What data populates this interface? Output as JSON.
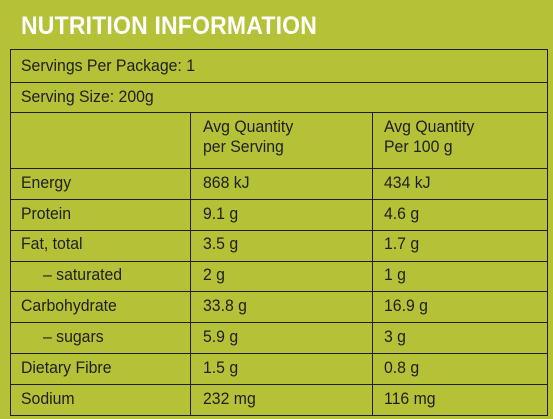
{
  "title": "NUTRITION INFORMATION",
  "servings_per_package": "Servings Per Package: 1",
  "serving_size": "Serving Size: 200g",
  "columns": {
    "per_serving_line1": "Avg Quantity",
    "per_serving_line2": "per Serving",
    "per_100g_line1": "Avg Quantity",
    "per_100g_line2": "Per 100 g"
  },
  "rows": [
    {
      "name": "Energy",
      "per_serving": "868 kJ",
      "per_100g": "434 kJ"
    },
    {
      "name": "Protein",
      "per_serving": "9.1 g",
      "per_100g": "4.6 g"
    },
    {
      "name": "Fat, total",
      "per_serving": "3.5 g",
      "per_100g": "1.7 g"
    },
    {
      "name": "– saturated",
      "per_serving": "2 g",
      "per_100g": "1 g"
    },
    {
      "name": "Carbohydrate",
      "per_serving": "33.8 g",
      "per_100g": "16.9 g"
    },
    {
      "name": "– sugars",
      "per_serving": "5.9 g",
      "per_100g": "3 g"
    },
    {
      "name": "Dietary Fibre",
      "per_serving": "1.5 g",
      "per_100g": "0.8 g"
    },
    {
      "name": "Sodium",
      "per_serving": "232 mg",
      "per_100g": "116 mg"
    }
  ],
  "colors": {
    "background": "#b5c137",
    "title_text": "#ffffff",
    "rule": "#1f1f1f",
    "text": "#1f1f1f"
  }
}
